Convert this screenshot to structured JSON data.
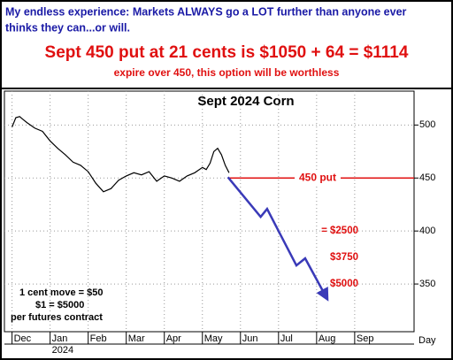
{
  "header": {
    "line1": "My endless experience: Markets ALWAYS go a LOT further than anyone ever",
    "line2": "thinks they can...or will.",
    "headline": "Sept 450 put at 21 cents is $1050 + 64 = $1114",
    "subhead": "expire over 450, this option will be worthless"
  },
  "chart_data": {
    "type": "line",
    "title": "Sept 2024 Corn",
    "xlabel": "Day",
    "year_label": "2024",
    "x": [
      0,
      0.1,
      0.2,
      0.3,
      0.4,
      0.6,
      0.8,
      1.0,
      1.2,
      1.4,
      1.6,
      1.8,
      2.0,
      2.2,
      2.4,
      2.6,
      2.8,
      3.0,
      3.2,
      3.4,
      3.6,
      3.8,
      4.0,
      4.2,
      4.4,
      4.6,
      4.8,
      5.0,
      5.1,
      5.2,
      5.3,
      5.4,
      5.5,
      5.6,
      5.7
    ],
    "values": [
      498,
      507,
      508,
      505,
      502,
      497,
      494,
      485,
      478,
      472,
      465,
      462,
      456,
      445,
      437,
      440,
      448,
      452,
      455,
      453,
      456,
      447,
      452,
      450,
      447,
      452,
      455,
      460,
      458,
      464,
      475,
      478,
      472,
      462,
      455
    ],
    "color": "#000000",
    "xlim": [
      -0.2,
      10.56
    ],
    "ylim": [
      305,
      532
    ],
    "xticks": [
      {
        "value": 0,
        "label": "Dec"
      },
      {
        "value": 1,
        "label": "Jan"
      },
      {
        "value": 2,
        "label": "Feb"
      },
      {
        "value": 3,
        "label": "Mar"
      },
      {
        "value": 4,
        "label": "Apr"
      },
      {
        "value": 5,
        "label": "May"
      },
      {
        "value": 6,
        "label": "Jun"
      },
      {
        "value": 7,
        "label": "Jul"
      },
      {
        "value": 8,
        "label": "Aug"
      },
      {
        "value": 9,
        "label": "Sep"
      }
    ],
    "yticks": [
      350,
      400,
      450,
      500
    ],
    "grid": true,
    "projection": {
      "x": [
        5.67,
        6.53,
        6.7,
        7.47,
        7.7,
        8.28
      ],
      "values": [
        450.8,
        413.3,
        420.8,
        367.5,
        374.2,
        335.8
      ],
      "color": "#3a3ab8"
    },
    "put_line": {
      "label": "450 put",
      "value": 450,
      "x_start": 5.67,
      "color": "#e01010"
    },
    "levels": [
      {
        "label": "= $2500",
        "value": 400
      },
      {
        "label": "$3750",
        "value": 375
      },
      {
        "label": "$5000",
        "value": 350
      }
    ],
    "notes": [
      "1 cent move = $50",
      "$1 = $5000",
      "per futures contract"
    ]
  }
}
